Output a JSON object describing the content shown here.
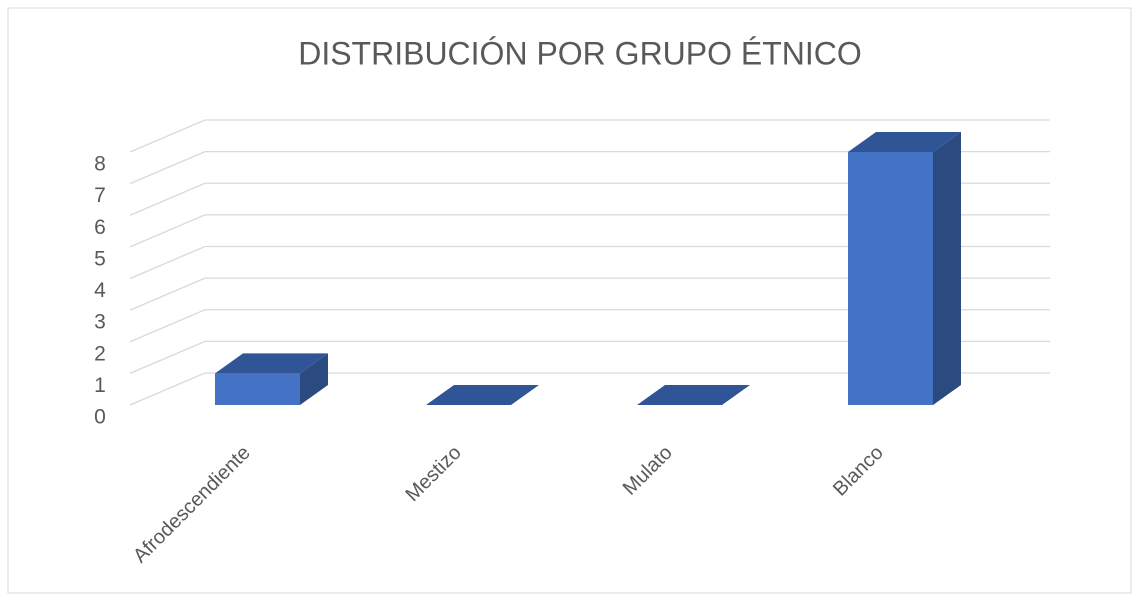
{
  "chart_data": {
    "type": "bar3d",
    "title": "DISTRIBUCIÓN POR GRUPO ÉTNICO",
    "categories": [
      "Afrodescendiente",
      "Mestizo",
      "Mulato",
      "Blanco"
    ],
    "values": [
      1,
      0,
      0,
      8
    ],
    "color": "#4472c4",
    "ylim": [
      0,
      8
    ],
    "yticks": [
      0,
      1,
      2,
      3,
      4,
      5,
      6,
      7,
      8
    ],
    "grid": true
  }
}
